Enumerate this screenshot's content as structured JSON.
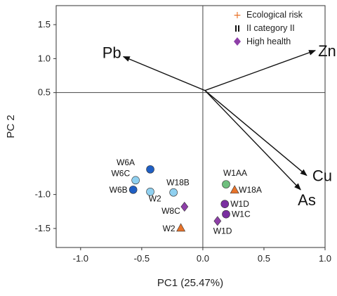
{
  "chart_data": {
    "type": "scatter",
    "title": "",
    "xlabel": "PC1 (25.47%)",
    "ylabel": "PC 2",
    "xlim": [
      -1.2,
      1.0
    ],
    "ylim": [
      -1.78,
      1.78
    ],
    "x_ticks": [
      "-1.0",
      "-0.5",
      "0.0",
      "0.5",
      "1.0"
    ],
    "y_ticks": [
      "1.5",
      "1.0",
      "0.5",
      "-1.0",
      "-1.5"
    ],
    "reference_lines": {
      "x": 0.0,
      "y": 0.5
    },
    "legend": {
      "position": "top-right",
      "entries": [
        {
          "marker": "plus",
          "label": "Ecological risk",
          "color": "#e8732a"
        },
        {
          "marker": "bar",
          "label": "II category II",
          "color": "#111111"
        },
        {
          "marker": "diamond",
          "label": "High health",
          "color": "#8e3fa8"
        }
      ]
    },
    "loadings": [
      {
        "label": "Pb",
        "x": -0.65,
        "y": 1.03
      },
      {
        "label": "Zn",
        "x": 0.92,
        "y": 1.12
      },
      {
        "label": "Cu",
        "x": 0.85,
        "y": -0.72
      },
      {
        "label": "As",
        "x": 0.8,
        "y": -0.93
      }
    ],
    "points": [
      {
        "label": "W6A",
        "x": -0.43,
        "y": -0.63,
        "marker": "circle",
        "color": "#1f5fc4"
      },
      {
        "label": "W6C",
        "x": -0.55,
        "y": -0.79,
        "marker": "circle",
        "color": "#8fd0f0"
      },
      {
        "label": "W6B",
        "x": -0.57,
        "y": -0.93,
        "marker": "circle",
        "color": "#1f5fc4"
      },
      {
        "label": "",
        "x": -0.43,
        "y": -0.96,
        "marker": "circle",
        "color": "#8fd0f0"
      },
      {
        "label": "W18B",
        "x": -0.24,
        "y": -0.97,
        "marker": "circle",
        "color": "#8fd0f0"
      },
      {
        "label": "W2",
        "x": -0.34,
        "y": -1.06,
        "marker": "none",
        "color": "#111111"
      },
      {
        "label": "W8C",
        "x": -0.15,
        "y": -1.18,
        "marker": "diamond",
        "color": "#8e3fa8"
      },
      {
        "label": "W1AA",
        "x": 0.19,
        "y": -0.85,
        "marker": "circle",
        "color": "#6fbf7e"
      },
      {
        "label": "W18A",
        "x": 0.26,
        "y": -0.93,
        "marker": "triangle",
        "color": "#e8732a"
      },
      {
        "label": "W1D",
        "x": 0.18,
        "y": -1.14,
        "marker": "circle",
        "color": "#7a2fa0"
      },
      {
        "label": "W1C",
        "x": 0.19,
        "y": -1.29,
        "marker": "circle",
        "color": "#7a2fa0"
      },
      {
        "label": "W2",
        "x": -0.18,
        "y": -1.49,
        "marker": "triangle",
        "color": "#e8732a"
      },
      {
        "label": "W1D",
        "x": 0.12,
        "y": -1.39,
        "marker": "diamond",
        "color": "#8e3fa8"
      }
    ]
  }
}
